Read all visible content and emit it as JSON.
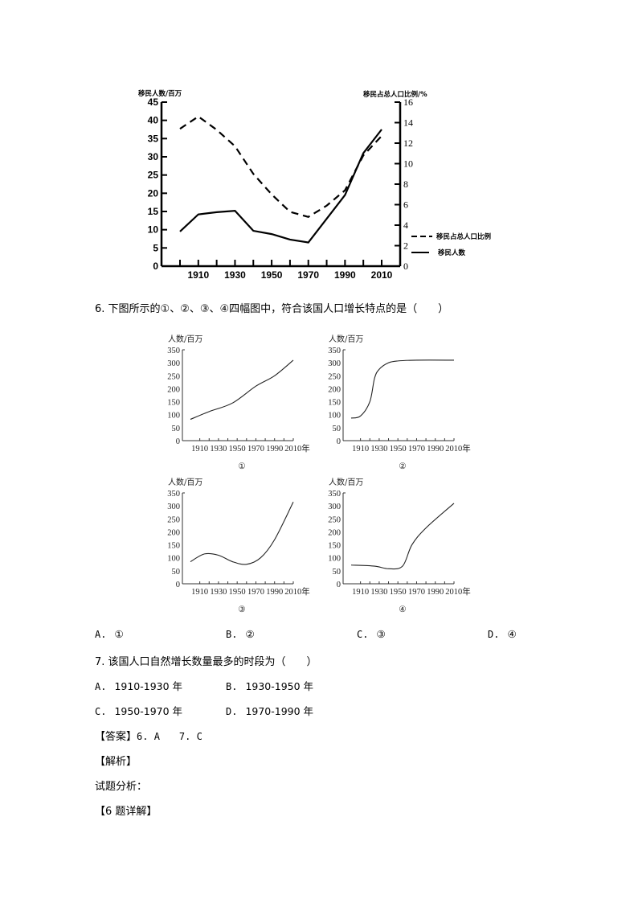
{
  "chart_data": [
    {
      "id": "main",
      "type": "line",
      "title": "",
      "x": [
        1900,
        1910,
        1920,
        1930,
        1940,
        1950,
        1960,
        1970,
        1980,
        1990,
        2000,
        2010
      ],
      "xtick_labels": [
        "1910",
        "1930",
        "1950",
        "1970",
        "1990",
        "2010"
      ],
      "ylabel_left": "移民人数/百万",
      "ylabel_right": "移民占总人口比例/%",
      "ylim_left": [
        0,
        45
      ],
      "ylim_right": [
        0,
        16
      ],
      "yticks_left": [
        "0",
        "5",
        "10",
        "15",
        "20",
        "25",
        "30",
        "35",
        "40",
        "45"
      ],
      "yticks_right": [
        "0",
        "2",
        "4",
        "6",
        "8",
        "10",
        "12",
        "14",
        "16"
      ],
      "series": [
        {
          "name": "移民占总人口比例",
          "style": "dashed",
          "axis": "right",
          "values": [
            13.4,
            14.6,
            13.3,
            11.7,
            9.0,
            7.0,
            5.3,
            4.8,
            5.9,
            7.4,
            10.8,
            12.7
          ]
        },
        {
          "name": "移民人数",
          "style": "solid",
          "axis": "left",
          "values": [
            9.5,
            14.2,
            14.8,
            15.2,
            9.7,
            8.8,
            7.3,
            6.5,
            13.0,
            19.5,
            31.0,
            37.5
          ]
        }
      ],
      "legend": [
        "移民占总人口比例",
        "移民人数"
      ],
      "legend_position": "right",
      "grid": false
    },
    {
      "id": "graph-1",
      "type": "line",
      "label": "①",
      "ylabel": "人数/百万",
      "ylim": [
        0,
        350
      ],
      "yticks": [
        "0",
        "50",
        "100",
        "150",
        "200",
        "250",
        "300",
        "350"
      ],
      "xtick_labels": [
        "1910",
        "1930",
        "1950",
        "1970",
        "1990",
        "2010年"
      ],
      "x": [
        1900,
        1920,
        1945,
        1970,
        1990,
        2010
      ],
      "values": [
        82,
        112,
        145,
        210,
        250,
        310
      ]
    },
    {
      "id": "graph-2",
      "type": "line",
      "label": "②",
      "ylabel": "人数/百万",
      "ylim": [
        0,
        350
      ],
      "yticks": [
        "0",
        "50",
        "100",
        "150",
        "200",
        "250",
        "300",
        "350"
      ],
      "xtick_labels": [
        "1910",
        "1930",
        "1950",
        "1970",
        "1990",
        "2010年"
      ],
      "x": [
        1900,
        1910,
        1920,
        1925,
        1930,
        1940,
        1950,
        1970,
        2010
      ],
      "values": [
        87,
        95,
        150,
        240,
        275,
        300,
        307,
        310,
        310
      ]
    },
    {
      "id": "graph-3",
      "type": "line",
      "label": "③",
      "ylabel": "人数/百万",
      "ylim": [
        0,
        350
      ],
      "yticks": [
        "0",
        "50",
        "100",
        "150",
        "200",
        "250",
        "300",
        "350"
      ],
      "xtick_labels": [
        "1910",
        "1930",
        "1950",
        "1970",
        "1990",
        "2010年"
      ],
      "x": [
        1900,
        1915,
        1930,
        1945,
        1960,
        1975,
        1990,
        2010
      ],
      "values": [
        85,
        115,
        110,
        85,
        75,
        100,
        170,
        315
      ]
    },
    {
      "id": "graph-4",
      "type": "line",
      "label": "④",
      "ylabel": "人数/百万",
      "ylim": [
        0,
        350
      ],
      "yticks": [
        "0",
        "50",
        "100",
        "150",
        "200",
        "250",
        "300",
        "350"
      ],
      "xtick_labels": [
        "1910",
        "1930",
        "1950",
        "1970",
        "1990",
        "2010年"
      ],
      "x": [
        1900,
        1925,
        1940,
        1955,
        1965,
        1980,
        2010
      ],
      "values": [
        72,
        68,
        58,
        68,
        150,
        215,
        310
      ]
    }
  ],
  "questions": {
    "q6": {
      "stem": "6. 下图所示的①、②、③、④四幅图中，符合该国人口增长特点的是（　　）",
      "options": [
        {
          "letter": "A.",
          "text": "①"
        },
        {
          "letter": "B.",
          "text": "②"
        },
        {
          "letter": "C.",
          "text": "③"
        },
        {
          "letter": "D.",
          "text": "④"
        }
      ]
    },
    "q7": {
      "stem": "7. 该国人口自然增长数量最多的时段为（　　）",
      "options": [
        {
          "letter": "A.",
          "text": "1910-1930 年"
        },
        {
          "letter": "B.",
          "text": "1930-1950 年"
        },
        {
          "letter": "C.",
          "text": "1950-1970 年"
        },
        {
          "letter": "D.",
          "text": "1970-1990 年"
        }
      ]
    }
  },
  "answer": {
    "label": "【答案】",
    "text": "6. A　　7. C"
  },
  "analysis": {
    "heading": "【解析】",
    "intro": "试题分析：",
    "detail_heading": "【6 题详解】"
  }
}
